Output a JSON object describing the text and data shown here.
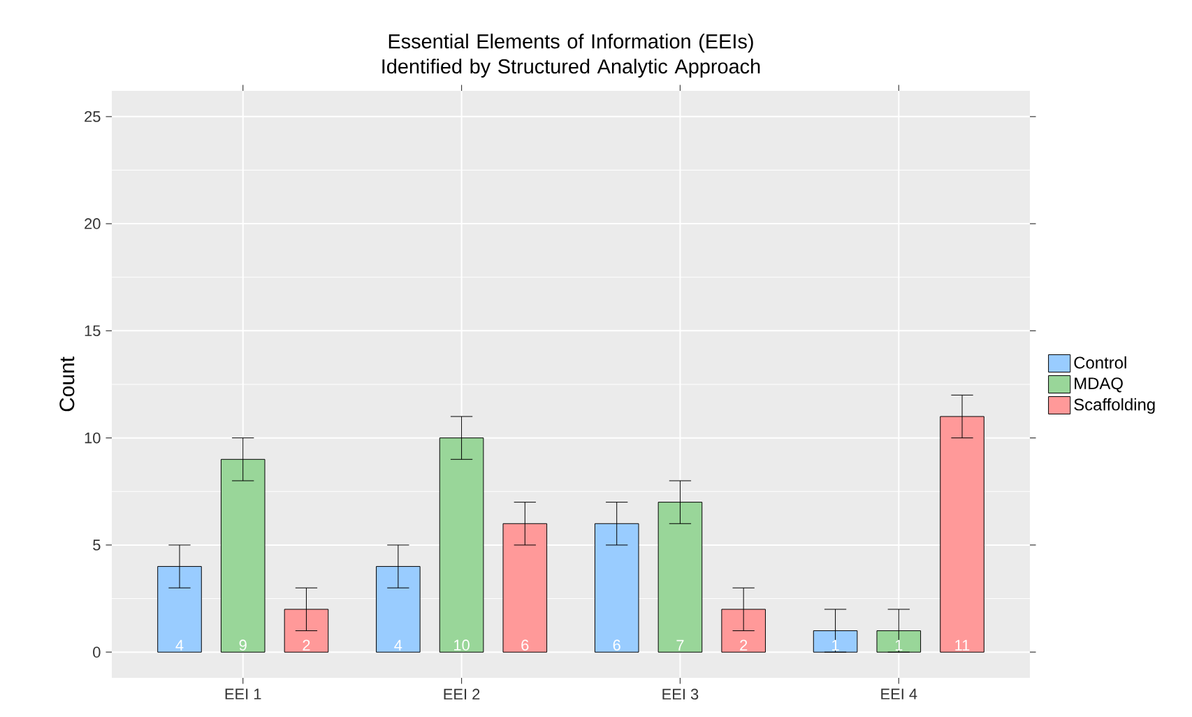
{
  "chart_data": {
    "type": "bar",
    "title": "Essential Elements of Information (EEIs) Identified by Structured Analytic Approach",
    "ylabel": "Count",
    "categories": [
      "EEI 1",
      "EEI 2",
      "EEI 3",
      "EEI 4"
    ],
    "series": [
      {
        "name": "Control",
        "color": "#99ccff",
        "values": [
          4,
          4,
          6,
          1
        ],
        "errors": [
          1,
          1,
          1,
          1
        ]
      },
      {
        "name": "MDAQ",
        "color": "#99d699",
        "values": [
          9,
          10,
          7,
          1
        ],
        "errors": [
          1,
          1,
          1,
          1
        ]
      },
      {
        "name": "Scaffolding",
        "color": "#ff9999",
        "values": [
          2,
          6,
          2,
          11
        ],
        "errors": [
          1,
          1,
          1,
          1
        ]
      }
    ],
    "ylim": [
      -1.2,
      26.2
    ],
    "yticks": [
      0,
      5,
      10,
      15,
      20,
      25
    ],
    "grid": true,
    "legend": "right",
    "data_labels": true
  }
}
